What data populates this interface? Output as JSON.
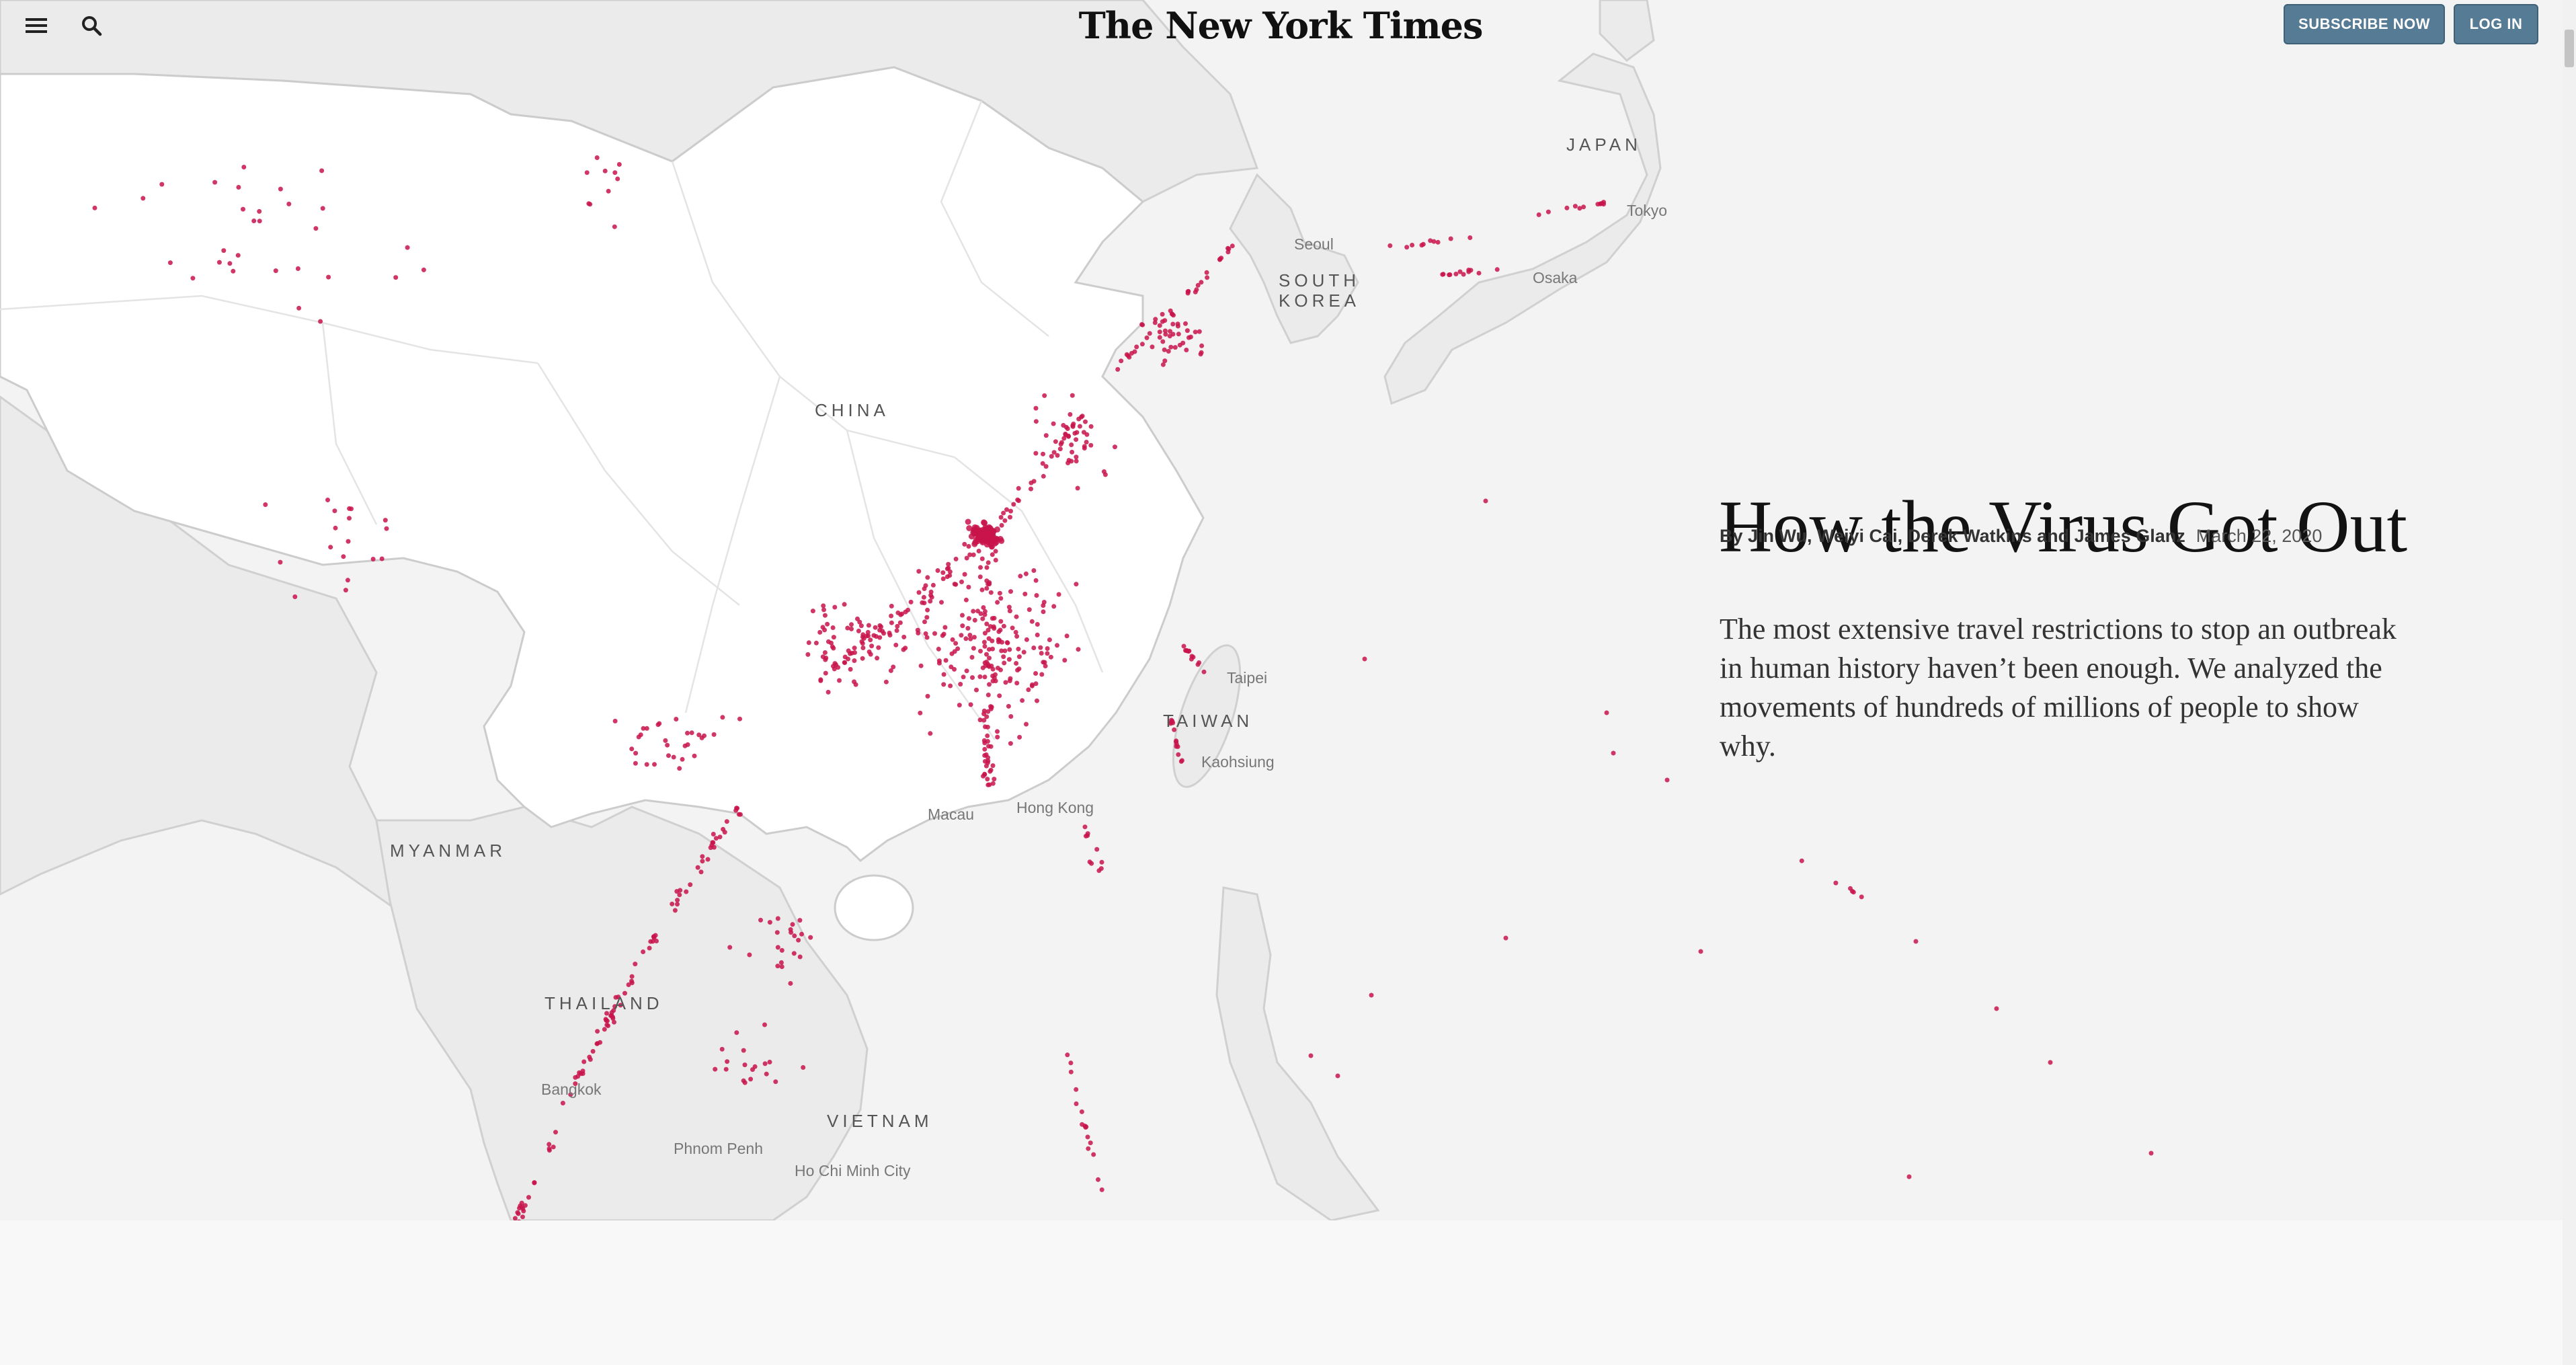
{
  "header": {
    "masthead": "The New York Times",
    "subscribe_label": "SUBSCRIBE NOW",
    "login_label": "LOG IN",
    "menu_icon": "hamburger-menu-icon",
    "search_icon": "magnifier-search-icon"
  },
  "article": {
    "headline": "How the Virus Got Out",
    "byline": "By Jin Wu, Weiyi Cai, Derek Watkins and James Glanz",
    "date": "March 22, 2020",
    "summary": "The most extensive travel restrictions to stop an outbreak in human history haven’t been enough. We analyzed the movements of hundreds of millions of people to show why."
  },
  "map": {
    "countries": [
      "CHINA",
      "JAPAN",
      "SOUTH KOREA",
      "TAIWAN",
      "MYANMAR",
      "THAILAND",
      "VIETNAM"
    ],
    "cities": [
      "Tokyo",
      "Seoul",
      "Osaka",
      "Taipei",
      "Kaohsiung",
      "Hong Kong",
      "Macau",
      "Bangkok",
      "Phnom Penh",
      "Ho Chi Minh City"
    ],
    "colors": {
      "dot": "#c8144b",
      "china_land": "#ffffff",
      "other_land": "#ebebeb",
      "sea": "#f3f3f3"
    }
  }
}
